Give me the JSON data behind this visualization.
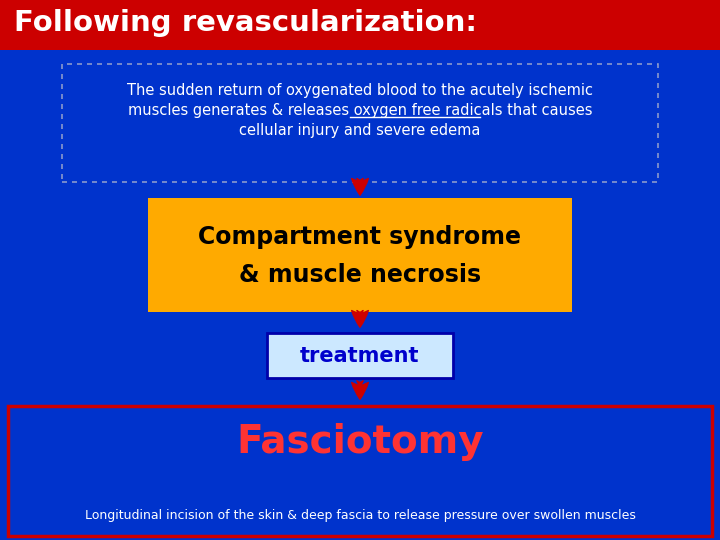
{
  "title": "Following revascularization:",
  "title_bg": "#cc0000",
  "title_fg": "#ffffff",
  "bg_color": "#0033cc",
  "box1_text_line1": "The sudden return of oxygenated blood to the acutely ischemic",
  "box1_text_line2a": "muscles generates & releases ",
  "box1_text_line2b": "oxygen free radicals",
  "box1_text_line2c": " that causes",
  "box1_text_line3": "cellular injury and severe edema",
  "box1_fg": "#ffffff",
  "box1_border": "#8899cc",
  "box2_line1": "Compartment syndrome",
  "box2_line2": "& muscle necrosis",
  "box2_bg": "#ffaa00",
  "box2_fg": "#000000",
  "box3_text": "treatment",
  "box3_bg": "#cce8ff",
  "box3_fg": "#0000cc",
  "box3_border": "#0000aa",
  "box4_line1": "Fasciotomy",
  "box4_line2": "Longitudinal incision of the skin & deep fascia to release pressure over swollen muscles",
  "box4_bg": "#0033cc",
  "box4_fg_title": "#ff3333",
  "box4_fg_sub": "#ffffff",
  "box4_border": "#cc0000",
  "arrow_color": "#cc0000"
}
